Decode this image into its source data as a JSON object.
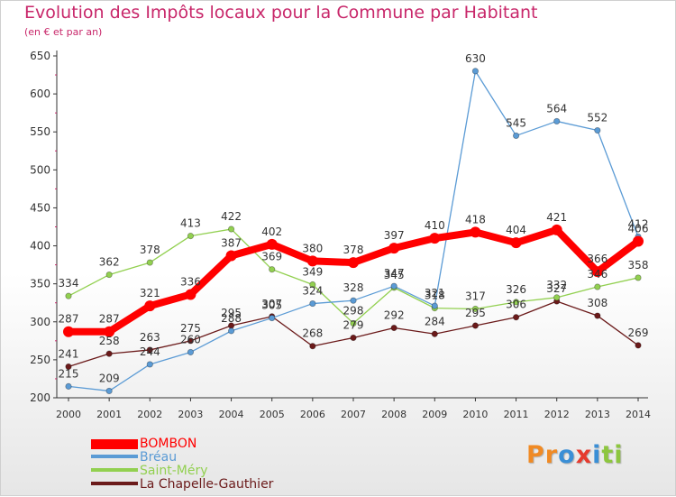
{
  "chart_data": {
    "type": "line",
    "title": "Evolution des Impôts locaux pour la Commune par Habitant",
    "subtitle": "(en € et par an)",
    "x": [
      2000,
      2001,
      2002,
      2003,
      2004,
      2005,
      2006,
      2007,
      2008,
      2009,
      2010,
      2011,
      2012,
      2013,
      2014
    ],
    "ylim": [
      200,
      650
    ],
    "yticks": [
      200,
      250,
      300,
      350,
      400,
      450,
      500,
      550,
      600,
      650
    ],
    "grid": false,
    "legend_position": "bottom-left",
    "series": [
      {
        "name": "BOMBON",
        "color": "#ff0000",
        "values": [
          287,
          287,
          321,
          336,
          387,
          402,
          380,
          378,
          397,
          410,
          418,
          404,
          421,
          366,
          406
        ]
      },
      {
        "name": "Bréau",
        "color": "#5b9bd5",
        "values": [
          215,
          209,
          244,
          260,
          288,
          305,
          324,
          328,
          347,
          321,
          630,
          545,
          564,
          552,
          412
        ]
      },
      {
        "name": "Saint-Méry",
        "color": "#92d050",
        "values": [
          334,
          362,
          378,
          413,
          422,
          369,
          349,
          298,
          345,
          318,
          317,
          326,
          332,
          346,
          358
        ]
      },
      {
        "name": "La Chapelle-Gauthier",
        "color": "#6b1a1a",
        "values": [
          241,
          258,
          263,
          275,
          295,
          307,
          268,
          279,
          292,
          284,
          295,
          306,
          327,
          308,
          269
        ]
      }
    ]
  },
  "logo": {
    "text": "Proxiti"
  }
}
